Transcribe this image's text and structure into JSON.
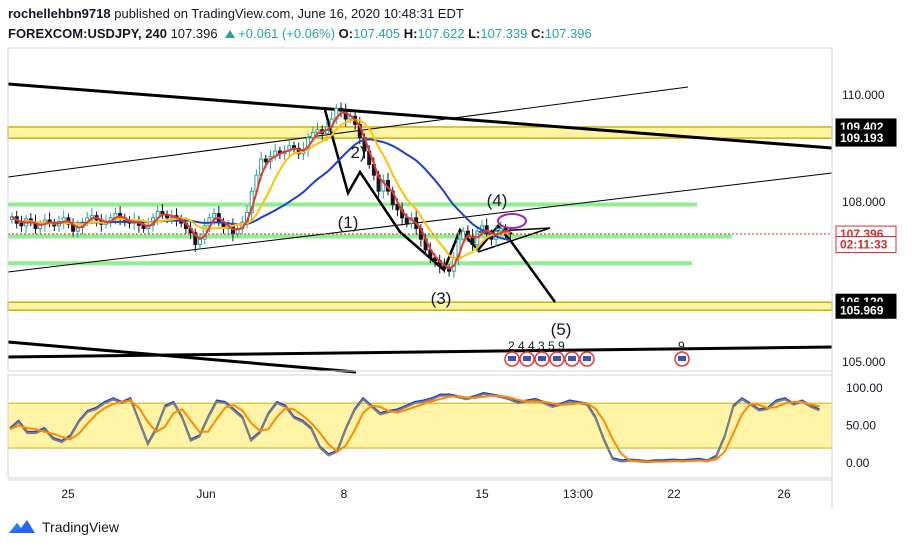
{
  "header": {
    "line1_user": "rochellehbn9718",
    "line1_rest": "published on TradingView.com, June 16, 2020 10:48:31 EDT",
    "symbol": "FOREXCOM:USDJPY, 240",
    "last": "107.396",
    "change": "+0.061 (+0.06%)",
    "o_label": "O:",
    "o": "107.405",
    "h_label": "H:",
    "h": "107.622",
    "l_label": "L:",
    "l": "107.339",
    "c_label": "C:",
    "c": "107.396"
  },
  "footer": {
    "brand": "TradingView"
  },
  "colors": {
    "up": "#26a69a",
    "down": "#131722",
    "band": "#fff3a6",
    "band_border": "#c8b400",
    "green_line": "#90ee90",
    "ma_red": "#e53935",
    "ma_yellow": "#ffc400",
    "ma_blue": "#1f3fd1",
    "stoch_k": "#7f7f7f",
    "stoch_d": "#ff8c00",
    "stoch_red": "#d32f2f",
    "last_price": "#d32f2f",
    "navy": "#1a2b57"
  },
  "chart_data": {
    "type": "candlestick",
    "symbol": "FOREXCOM:USDJPY",
    "interval": "240",
    "ylim": [
      104.7,
      110.7
    ],
    "y_ticks": [
      105.0,
      106.0,
      107.0,
      108.0,
      109.0,
      110.0
    ],
    "y_tick_labels": [
      "105.000",
      "",
      "",
      "108.000",
      "",
      "110.000"
    ],
    "x_labels": [
      "25",
      "Jun",
      "8",
      "15",
      "13:00",
      "22",
      "26"
    ],
    "price_labels": [
      {
        "text": "109.402",
        "value": 109.402,
        "style": "box"
      },
      {
        "text": "109.193",
        "value": 109.193,
        "style": "box"
      },
      {
        "text": "107.396",
        "value": 107.396,
        "style": "last"
      },
      {
        "text": "02:11:33",
        "value": 107.2,
        "style": "countdown"
      },
      {
        "text": "106.120",
        "value": 106.12,
        "style": "box"
      },
      {
        "text": "105.969",
        "value": 105.969,
        "style": "box"
      }
    ],
    "supply_zones": [
      [
        109.193,
        109.402
      ],
      [
        105.969,
        106.12
      ]
    ],
    "support_lines": [
      107.95,
      107.35,
      106.85
    ],
    "wave_labels": [
      "(1)",
      "2)",
      "(3)",
      "(4)",
      "(5)"
    ],
    "closes": [
      107.72,
      107.6,
      107.55,
      107.68,
      107.62,
      107.5,
      107.58,
      107.66,
      107.6,
      107.55,
      107.63,
      107.7,
      107.58,
      107.45,
      107.52,
      107.62,
      107.7,
      107.74,
      107.66,
      107.58,
      107.62,
      107.7,
      107.78,
      107.7,
      107.62,
      107.6,
      107.66,
      107.56,
      107.5,
      107.56,
      107.7,
      107.82,
      107.76,
      107.7,
      107.74,
      107.68,
      107.6,
      107.5,
      107.42,
      107.2,
      107.3,
      107.55,
      107.7,
      107.78,
      107.62,
      107.5,
      107.55,
      107.4,
      107.5,
      107.62,
      107.8,
      108.2,
      108.5,
      108.8,
      108.75,
      108.85,
      108.95,
      108.9,
      108.95,
      109.05,
      109.0,
      108.9,
      108.98,
      109.2,
      109.3,
      109.35,
      109.28,
      109.4,
      109.55,
      109.75,
      109.7,
      109.55,
      109.6,
      109.45,
      109.2,
      108.95,
      108.7,
      108.5,
      108.2,
      108.4,
      108.2,
      107.95,
      107.85,
      107.7,
      107.6,
      107.7,
      107.5,
      107.3,
      107.1,
      106.95,
      106.9,
      106.8,
      106.75,
      106.7,
      106.95,
      107.3,
      107.45,
      107.35,
      107.2,
      107.45,
      107.55,
      107.4,
      107.3,
      107.45,
      107.5,
      107.42,
      107.4
    ],
    "stoch_ylim": [
      -10,
      110
    ],
    "stoch_ticks": [
      0,
      50,
      100
    ],
    "stoch_tick_labels": [
      "0.00",
      "50.00",
      "100.00"
    ],
    "stoch_band": [
      20,
      80
    ],
    "stoch_k": [
      45,
      55,
      40,
      40,
      45,
      32,
      28,
      35,
      55,
      68,
      72,
      80,
      85,
      80,
      85,
      55,
      25,
      45,
      75,
      80,
      60,
      30,
      35,
      60,
      82,
      80,
      70,
      60,
      30,
      40,
      65,
      80,
      75,
      60,
      55,
      45,
      20,
      10,
      15,
      45,
      70,
      85,
      75,
      65,
      68,
      70,
      75,
      80,
      82,
      85,
      90,
      90,
      88,
      85,
      88,
      92,
      90,
      88,
      85,
      80,
      82,
      84,
      80,
      75,
      78,
      82,
      80,
      78,
      60,
      30,
      5,
      2,
      3,
      2,
      1,
      2,
      2,
      3,
      2,
      3,
      4,
      2,
      8,
      35,
      75,
      85,
      78,
      70,
      72,
      82,
      85,
      78,
      82,
      75,
      70
    ],
    "events": [
      {
        "label": "2 4 4 3 5 9",
        "kind": "calendar"
      },
      {
        "label": "9",
        "kind": "calendar"
      }
    ]
  }
}
